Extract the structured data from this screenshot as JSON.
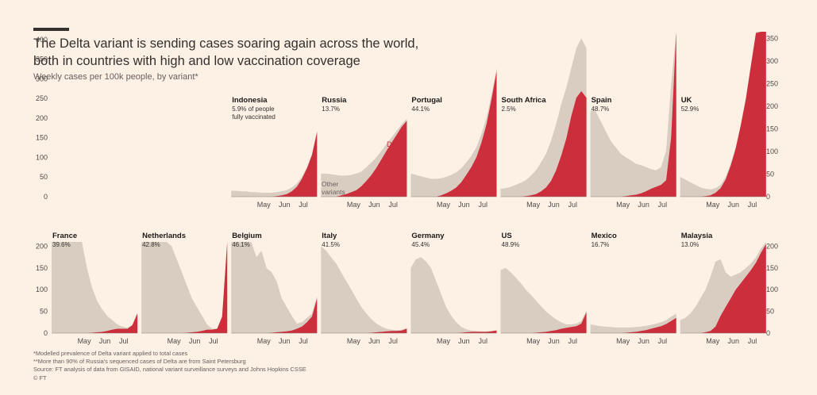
{
  "header": {
    "title_line1": "The Delta variant is sending cases soaring again across the world,",
    "title_line2": "both in countries with high and low vaccination coverage",
    "subtitle": "Weekly cases per 100k people, by variant*"
  },
  "footer": {
    "note1": "*Modelled prevalence of Delta variant applied to total cases",
    "note2": "**More than 90% of Russia's sequenced cases of Delta are from Saint Petersburg",
    "source": "Source: FT analysis of data from GISAID, national variant surveillance surveys and Johns Hopkins CSSE",
    "copyright": "© FT"
  },
  "colors": {
    "delta": "#cc2e3c",
    "other": "#d9cdc2",
    "background": "#fdf1e6",
    "text": "#33302e"
  },
  "chart_data": {
    "type": "area",
    "stacked": true,
    "x_ticks": [
      "May",
      "Jun",
      "Jul"
    ],
    "x_range": [
      "Apr",
      "Jul"
    ],
    "series_labels": {
      "delta": "Delta",
      "other": "Other\nvariants"
    },
    "rows": [
      {
        "left_axis": {
          "ticks": [
            0,
            50,
            100,
            150,
            200,
            250,
            300,
            350,
            400
          ],
          "range": [
            0,
            420
          ]
        },
        "right_axis": {
          "ticks": [
            0,
            50,
            100,
            150,
            200,
            250,
            300,
            350
          ],
          "range": [
            0,
            365
          ]
        },
        "panels": [
          {
            "country": "France",
            "vaccinated": "39.6%",
            "total": [
              300,
              345,
              430,
              380,
              330,
              270,
              210,
              150,
              105,
              75,
              55,
              40,
              30,
              20,
              15,
              12,
              20,
              48
            ],
            "delta": [
              0,
              0,
              0,
              0,
              0,
              0,
              0,
              0,
              1,
              2,
              3,
              5,
              8,
              10,
              10,
              10,
              18,
              45
            ]
          },
          {
            "country": "Netherlands",
            "vaccinated": "42.8%",
            "total": [
              280,
              300,
              330,
              350,
              310,
              240,
              200,
              170,
              140,
              110,
              80,
              60,
              40,
              20,
              10,
              10,
              40,
              335
            ],
            "delta": [
              0,
              0,
              0,
              0,
              0,
              0,
              0,
              0,
              0,
              1,
              2,
              3,
              5,
              8,
              8,
              10,
              38,
              335
            ]
          },
          {
            "country": "Belgium",
            "vaccinated": "46.1%",
            "total": [
              245,
              220,
              215,
              220,
              210,
              175,
              190,
              150,
              140,
              120,
              80,
              60,
              40,
              22,
              25,
              35,
              45,
              85
            ],
            "delta": [
              0,
              0,
              0,
              0,
              0,
              0,
              0,
              0,
              1,
              2,
              3,
              4,
              6,
              10,
              15,
              25,
              38,
              80
            ]
          },
          {
            "country": "Indonesia",
            "vaccinated": "5.9% of people\nfully vaccinated",
            "total": [
              9,
              9,
              8,
              8,
              7,
              7,
              6,
              6,
              6,
              7,
              8,
              10,
              14,
              20,
              30,
              45,
              65,
              100
            ],
            "delta": [
              0,
              0,
              0,
              0,
              0,
              0,
              0,
              0,
              0,
              1,
              2,
              4,
              8,
              15,
              27,
              43,
              63,
              98
            ]
          },
          {
            "country": "Russia**",
            "vaccinated": "13.7%",
            "total": [
              35,
              35,
              34,
              33,
              32,
              32,
              33,
              35,
              38,
              45,
              52,
              60,
              70,
              80,
              90,
              100,
              110,
              118
            ],
            "delta": [
              0,
              0,
              0,
              0,
              2,
              4,
              7,
              10,
              16,
              24,
              33,
              44,
              57,
              70,
              82,
              94,
              106,
              115
            ]
          },
          {
            "country": "Portugal",
            "vaccinated": "44.1%",
            "total": [
              35,
              33,
              31,
              29,
              27,
              27,
              28,
              30,
              33,
              37,
              43,
              52,
              62,
              75,
              95,
              120,
              155,
              195
            ],
            "delta": [
              0,
              0,
              0,
              0,
              0,
              0,
              2,
              5,
              9,
              14,
              22,
              33,
              45,
              60,
              82,
              110,
              148,
              190
            ]
          },
          {
            "country": "South Africa",
            "vaccinated": "2.5%",
            "total": [
              12,
              13,
              15,
              18,
              21,
              25,
              32,
              40,
              52,
              65,
              85,
              110,
              140,
              165,
              195,
              225,
              240,
              225
            ],
            "delta": [
              0,
              0,
              0,
              0,
              0,
              1,
              2,
              4,
              8,
              14,
              24,
              40,
              62,
              88,
              122,
              150,
              160,
              150
            ]
          },
          {
            "country": "Spain",
            "vaccinated": "48.7%",
            "total": [
              130,
              130,
              115,
              100,
              85,
              75,
              65,
              60,
              55,
              50,
              48,
              45,
              42,
              40,
              45,
              70,
              170,
              305
            ],
            "delta": [
              0,
              0,
              0,
              0,
              0,
              0,
              0,
              1,
              2,
              3,
              5,
              8,
              12,
              15,
              18,
              25,
              90,
              250
            ]
          },
          {
            "country": "UK",
            "vaccinated": "52.9%",
            "total": [
              30,
              26,
              22,
              18,
              14,
              12,
              11,
              13,
              18,
              30,
              50,
              75,
              110,
              150,
              200,
              250,
              310,
              365
            ],
            "delta": [
              0,
              0,
              0,
              0,
              0,
              1,
              2,
              6,
              13,
              26,
              47,
              73,
              108,
              148,
              198,
              248,
              308,
              363
            ]
          }
        ]
      },
      {
        "left_axis": {
          "ticks": [
            0,
            50,
            100,
            150,
            200
          ],
          "range": [
            0,
            210
          ]
        },
        "right_axis": {
          "ticks": [
            0,
            50,
            100,
            150,
            200
          ],
          "range": [
            0,
            210
          ]
        },
        "panels": [
          {
            "country": "France",
            "vaccinated": "39.6%",
            "total": [
              300,
              345,
              430,
              380,
              330,
              270,
              210,
              150,
              105,
              75,
              55,
              40,
              30,
              20,
              15,
              12,
              20,
              48
            ],
            "delta": [
              0,
              0,
              0,
              0,
              0,
              0,
              0,
              0,
              1,
              2,
              3,
              5,
              8,
              10,
              10,
              10,
              18,
              45
            ]
          },
          {
            "country": "Netherlands",
            "vaccinated": "42.8%",
            "total": [
              280,
              300,
              330,
              350,
              310,
              240,
              200,
              170,
              140,
              110,
              80,
              60,
              40,
              20,
              10,
              10,
              40,
              335
            ],
            "delta": [
              0,
              0,
              0,
              0,
              0,
              0,
              0,
              0,
              0,
              1,
              2,
              3,
              5,
              8,
              8,
              10,
              38,
              335
            ]
          },
          {
            "country": "Belgium",
            "vaccinated": "46.1%",
            "total": [
              245,
              220,
              215,
              220,
              210,
              175,
              190,
              150,
              140,
              120,
              80,
              60,
              40,
              22,
              25,
              35,
              45,
              85
            ],
            "delta": [
              0,
              0,
              0,
              0,
              0,
              0,
              0,
              0,
              1,
              2,
              3,
              4,
              6,
              10,
              15,
              25,
              38,
              80
            ]
          },
          {
            "country": "Italy",
            "vaccinated": "41.5%",
            "total": [
              200,
              190,
              175,
              160,
              140,
              120,
              100,
              80,
              60,
              45,
              32,
              22,
              15,
              10,
              8,
              7,
              8,
              12
            ],
            "delta": [
              0,
              0,
              0,
              0,
              0,
              0,
              0,
              0,
              0,
              0,
              1,
              2,
              3,
              4,
              5,
              5,
              6,
              10
            ]
          },
          {
            "country": "Germany",
            "vaccinated": "45.4%",
            "total": [
              150,
              170,
              175,
              165,
              150,
              120,
              90,
              60,
              40,
              25,
              14,
              9,
              6,
              5,
              4,
              4,
              5,
              7
            ],
            "delta": [
              0,
              0,
              0,
              0,
              0,
              0,
              0,
              0,
              0,
              0,
              1,
              2,
              3,
              3,
              3,
              3,
              4,
              6
            ]
          },
          {
            "country": "US",
            "vaccinated": "48.9%",
            "total": [
              145,
              150,
              140,
              128,
              115,
              100,
              88,
              75,
              62,
              50,
              40,
              32,
              25,
              20,
              20,
              22,
              28,
              52
            ],
            "delta": [
              0,
              0,
              0,
              0,
              0,
              0,
              0,
              1,
              2,
              3,
              5,
              7,
              10,
              12,
              14,
              16,
              22,
              48
            ]
          },
          {
            "country": "Mexico",
            "vaccinated": "16.7%",
            "total": [
              20,
              18,
              16,
              15,
              14,
              13,
              13,
              13,
              13,
              14,
              15,
              17,
              19,
              22,
              25,
              30,
              38,
              45
            ],
            "delta": [
              0,
              0,
              0,
              0,
              0,
              0,
              0,
              1,
              2,
              3,
              5,
              7,
              10,
              13,
              16,
              21,
              28,
              35
            ]
          },
          {
            "country": "Malaysia",
            "vaccinated": "13.0%",
            "total": [
              30,
              35,
              45,
              60,
              80,
              100,
              130,
              165,
              170,
              140,
              130,
              135,
              140,
              150,
              160,
              175,
              195,
              210
            ],
            "delta": [
              0,
              0,
              0,
              0,
              0,
              2,
              5,
              15,
              40,
              60,
              80,
              100,
              115,
              130,
              145,
              162,
              185,
              205
            ]
          }
        ]
      }
    ]
  }
}
